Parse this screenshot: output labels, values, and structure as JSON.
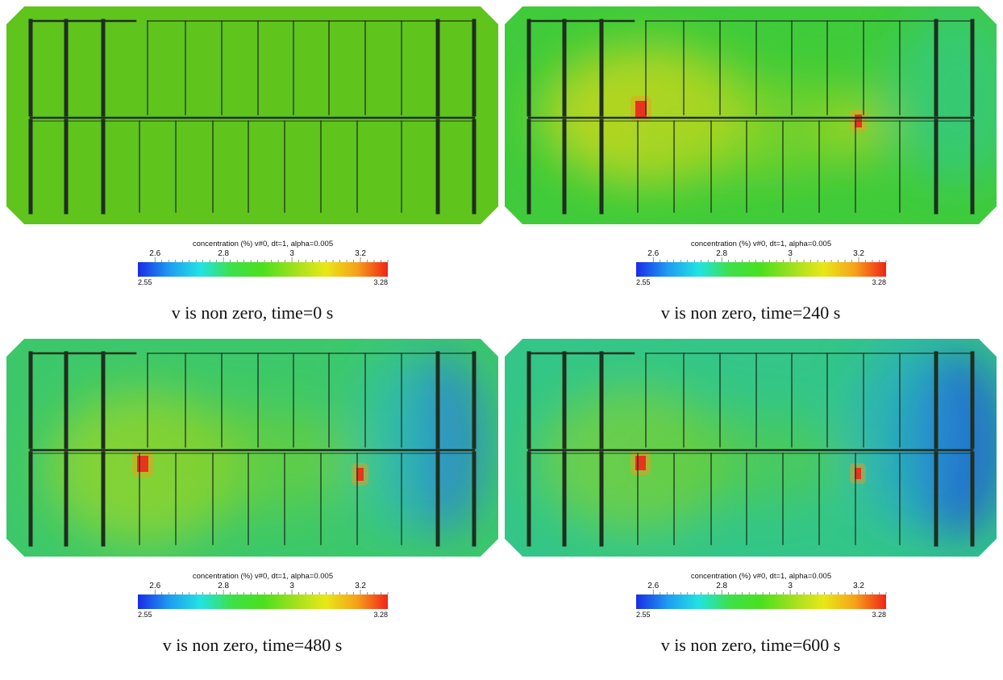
{
  "colorbar": {
    "title": "concentration (%) v#0, dt=1, alpha=0.005",
    "ticks": [
      2.6,
      2.8,
      3,
      3.2
    ],
    "min": 2.55,
    "max": 3.28,
    "min_label": "2.55",
    "max_label": "3.28",
    "colors": [
      "#1a2ce6",
      "#1e9cf0",
      "#22e3e3",
      "#3ee04a",
      "#4be01e",
      "#9fe01e",
      "#e8e818",
      "#f6a21a",
      "#f02418"
    ]
  },
  "panels": [
    {
      "caption": "v is non zero, time=0 s"
    },
    {
      "caption": "v is non zero, time=240 s"
    },
    {
      "caption": "v is non zero, time=480 s"
    },
    {
      "caption": "v is non zero, time=600 s"
    }
  ]
}
